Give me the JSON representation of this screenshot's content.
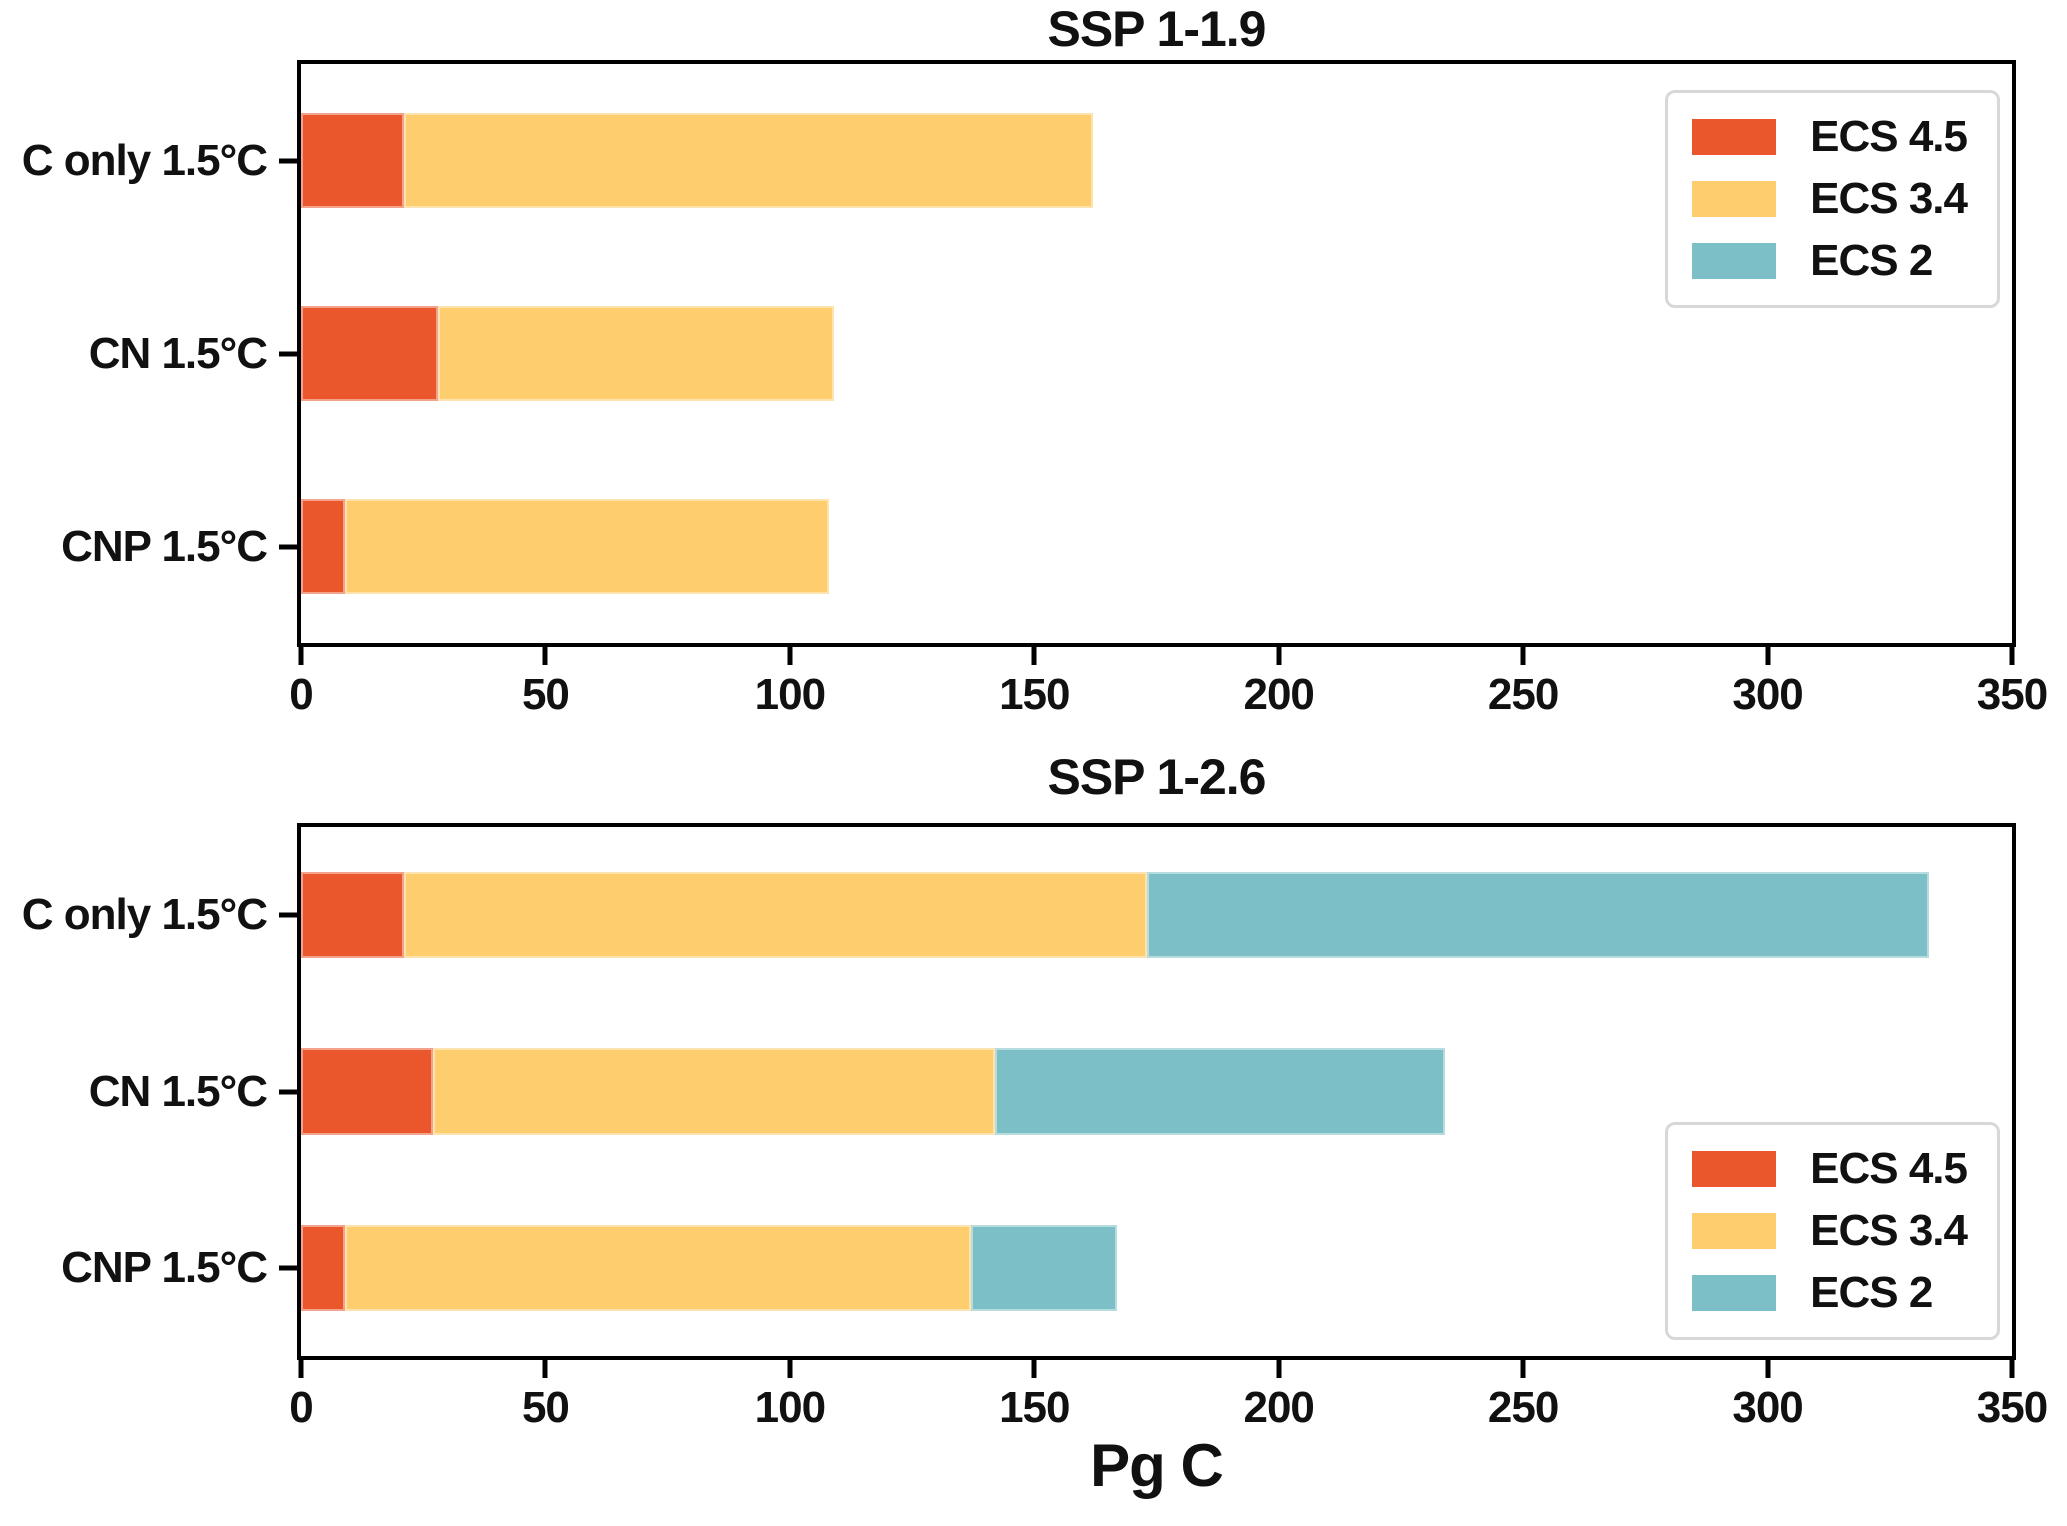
{
  "figure": {
    "xlabel": "Pg C",
    "background_color": "#ffffff",
    "axis_color": "#000000",
    "legend_border_color": "#d8d8d8"
  },
  "chart_data": [
    {
      "type": "bar",
      "orientation": "horizontal",
      "stacked": true,
      "title": "SSP 1-1.9",
      "categories": [
        "C only 1.5°C",
        "CN 1.5°C",
        "CNP 1.5°C"
      ],
      "series": [
        {
          "name": "ECS 4.5",
          "color": "#EA572C",
          "values": [
            21,
            28,
            9
          ]
        },
        {
          "name": "ECS 3.4",
          "color": "#FDCD6E",
          "values": [
            141,
            81,
            99
          ]
        },
        {
          "name": "ECS 2",
          "color": "#7CBFC6",
          "values": [
            0,
            0,
            0
          ]
        }
      ],
      "stacked_totals": [
        162,
        109,
        108
      ],
      "xlim": [
        0,
        350
      ],
      "xticks": [
        0,
        50,
        100,
        150,
        200,
        250,
        300,
        350
      ],
      "xlabel": "",
      "grid": false,
      "legend_position": "upper right"
    },
    {
      "type": "bar",
      "orientation": "horizontal",
      "stacked": true,
      "title": "SSP 1-2.6",
      "categories": [
        "C only 1.5°C",
        "CN 1.5°C",
        "CNP 1.5°C"
      ],
      "series": [
        {
          "name": "ECS 4.5",
          "color": "#EA572C",
          "values": [
            21,
            27,
            9
          ]
        },
        {
          "name": "ECS 3.4",
          "color": "#FDCD6E",
          "values": [
            152,
            115,
            128
          ]
        },
        {
          "name": "ECS 2",
          "color": "#7CBFC6",
          "values": [
            160,
            92,
            30
          ]
        }
      ],
      "stacked_totals": [
        333,
        234,
        167
      ],
      "xlim": [
        0,
        350
      ],
      "xticks": [
        0,
        50,
        100,
        150,
        200,
        250,
        300,
        350
      ],
      "xlabel": "Pg C",
      "grid": false,
      "legend_position": "lower right"
    }
  ]
}
